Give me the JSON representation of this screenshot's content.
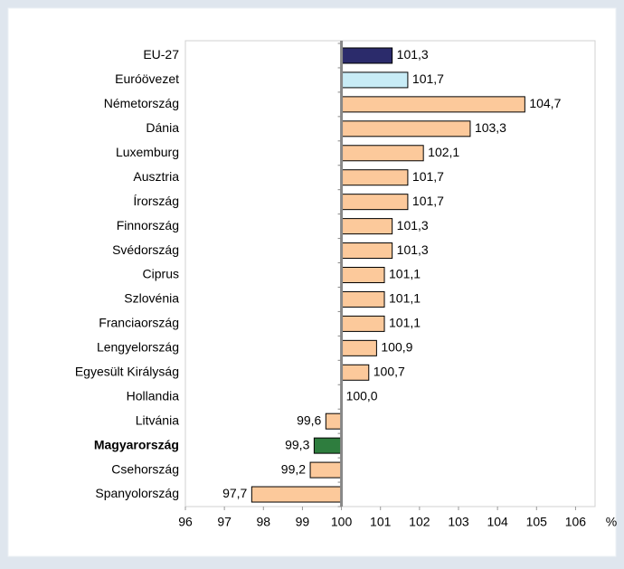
{
  "chart_data": {
    "type": "hbar",
    "categories": [
      "EU-27",
      "Euróövezet",
      "Németország",
      "Dánia",
      "Luxemburg",
      "Ausztria",
      "Írország",
      "Finnország",
      "Svédország",
      "Ciprus",
      "Szlovénia",
      "Franciaország",
      "Lengyelország",
      "Egyesült Királyság",
      "Hollandia",
      "Litvánia",
      "Magyarország",
      "Csehország",
      "Spanyolország"
    ],
    "values": [
      101.3,
      101.7,
      104.7,
      103.3,
      102.1,
      101.7,
      101.7,
      101.3,
      101.3,
      101.1,
      101.1,
      101.1,
      100.9,
      100.7,
      100.0,
      99.6,
      99.3,
      99.2,
      97.7
    ],
    "value_labels": [
      "101,3",
      "101,7",
      "104,7",
      "103,3",
      "102,1",
      "101,7",
      "101,7",
      "101,3",
      "101,3",
      "101,1",
      "101,1",
      "101,1",
      "100,9",
      "100,7",
      "100,0",
      "99,6",
      "99,3",
      "99,2",
      "97,7"
    ],
    "colors": [
      "#2b2b6b",
      "#c8ecf6",
      "#fcc99b",
      "#fcc99b",
      "#fcc99b",
      "#fcc99b",
      "#fcc99b",
      "#fcc99b",
      "#fcc99b",
      "#fcc99b",
      "#fcc99b",
      "#fcc99b",
      "#fcc99b",
      "#fcc99b",
      "#fcc99b",
      "#fcc99b",
      "#2e7d3e",
      "#fcc99b",
      "#fcc99b"
    ],
    "highlight_index": 16,
    "baseline": 100,
    "xlim": [
      96,
      106.5
    ],
    "xticks": [
      96,
      97,
      98,
      99,
      100,
      101,
      102,
      103,
      104,
      105,
      106
    ],
    "xlabel": "%"
  }
}
